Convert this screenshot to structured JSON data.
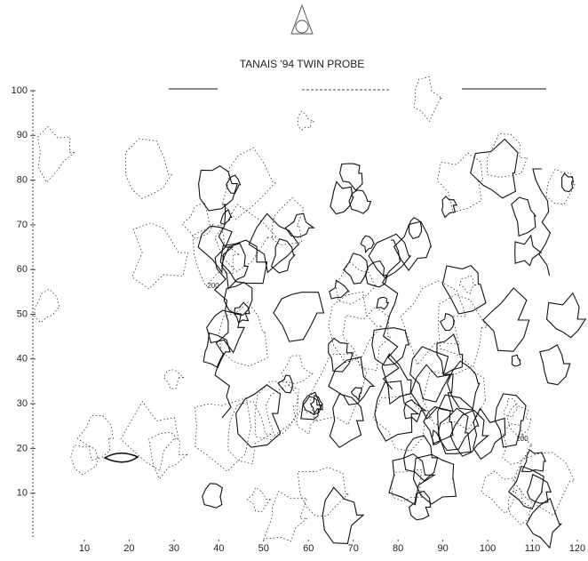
{
  "chart_data": {
    "type": "contour",
    "title": "TANAIS '94 TWIN PROBE",
    "xlim": [
      0,
      120
    ],
    "xticks": [
      10,
      20,
      30,
      40,
      50,
      60,
      70,
      80,
      90,
      100,
      110,
      120
    ],
    "ylim": [
      0,
      100
    ],
    "yticks": [
      10,
      20,
      30,
      40,
      50,
      60,
      70,
      80,
      90,
      100
    ],
    "contour_labels": [
      "200",
      "200"
    ],
    "color": "#111"
  }
}
